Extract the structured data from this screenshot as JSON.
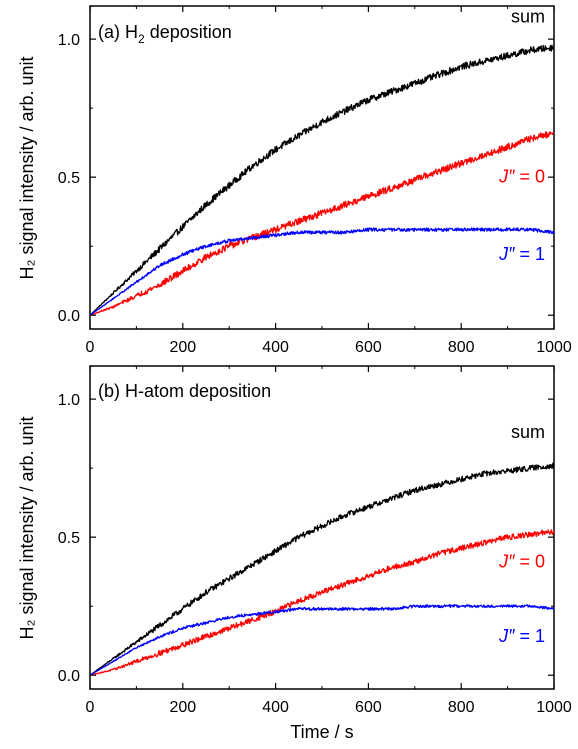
{
  "chart_data": [
    {
      "type": "line",
      "panel_label": "(a) H",
      "panel_label_sub": "2",
      "panel_label_rest": " deposition",
      "xlabel": "",
      "ylabel": "H₂ signal intensity / arb. unit",
      "xlim": [
        0,
        1000
      ],
      "ylim": [
        -0.05,
        1.12
      ],
      "xticks": [
        0,
        200,
        400,
        600,
        800,
        1000
      ],
      "yticks": [
        0.0,
        0.5,
        1.0
      ],
      "ytick_labels": [
        "0.0",
        "0.5",
        "1.0"
      ],
      "grid": false,
      "x": [
        0,
        50,
        100,
        150,
        200,
        250,
        300,
        350,
        400,
        450,
        500,
        550,
        600,
        650,
        700,
        750,
        800,
        850,
        900,
        950,
        1000
      ],
      "series": [
        {
          "label_text": "sum",
          "label_italic": "",
          "label_rest": "sum",
          "color": "#000000",
          "noise": 0.012,
          "values": [
            0.0,
            0.08,
            0.16,
            0.24,
            0.32,
            0.4,
            0.47,
            0.54,
            0.6,
            0.65,
            0.7,
            0.74,
            0.78,
            0.81,
            0.84,
            0.87,
            0.9,
            0.92,
            0.94,
            0.96,
            0.97
          ]
        },
        {
          "label_text": "J″ = 0",
          "label_italic": "J″",
          "label_rest": " = 0",
          "color": "#ff0000",
          "noise": 0.012,
          "values": [
            0.0,
            0.03,
            0.07,
            0.11,
            0.16,
            0.21,
            0.25,
            0.28,
            0.31,
            0.34,
            0.37,
            0.4,
            0.43,
            0.46,
            0.49,
            0.52,
            0.55,
            0.58,
            0.61,
            0.64,
            0.66
          ]
        },
        {
          "label_text": "J″ = 1",
          "label_italic": "J″",
          "label_rest": " = 1",
          "color": "#0000ff",
          "noise": 0.006,
          "values": [
            0.0,
            0.06,
            0.12,
            0.18,
            0.22,
            0.25,
            0.27,
            0.28,
            0.29,
            0.3,
            0.3,
            0.3,
            0.31,
            0.31,
            0.31,
            0.31,
            0.31,
            0.31,
            0.31,
            0.31,
            0.3
          ]
        }
      ]
    },
    {
      "type": "line",
      "panel_label": "(b) H-atom deposition",
      "panel_label_sub": "",
      "panel_label_rest": "",
      "xlabel": "Time / s",
      "ylabel": "H₂ signal intensity / arb. unit",
      "xlim": [
        0,
        1000
      ],
      "ylim": [
        -0.05,
        1.12
      ],
      "xticks": [
        0,
        200,
        400,
        600,
        800,
        1000
      ],
      "yticks": [
        0.0,
        0.5,
        1.0
      ],
      "ytick_labels": [
        "0.0",
        "0.5",
        "1.0"
      ],
      "grid": false,
      "x": [
        0,
        50,
        100,
        150,
        200,
        250,
        300,
        350,
        400,
        450,
        500,
        550,
        600,
        650,
        700,
        750,
        800,
        850,
        900,
        950,
        1000
      ],
      "series": [
        {
          "label_text": "sum",
          "label_italic": "",
          "label_rest": "sum",
          "color": "#000000",
          "noise": 0.01,
          "values": [
            0.0,
            0.06,
            0.12,
            0.18,
            0.24,
            0.3,
            0.35,
            0.4,
            0.45,
            0.5,
            0.54,
            0.58,
            0.61,
            0.64,
            0.67,
            0.69,
            0.71,
            0.73,
            0.74,
            0.75,
            0.76
          ]
        },
        {
          "label_text": "J″ = 0",
          "label_italic": "J″",
          "label_rest": " = 0",
          "color": "#ff0000",
          "noise": 0.01,
          "values": [
            0.0,
            0.02,
            0.05,
            0.08,
            0.11,
            0.14,
            0.17,
            0.2,
            0.23,
            0.27,
            0.3,
            0.33,
            0.36,
            0.39,
            0.41,
            0.44,
            0.46,
            0.48,
            0.5,
            0.51,
            0.52
          ]
        },
        {
          "label_text": "J″ = 1",
          "label_italic": "J″",
          "label_rest": " = 1",
          "color": "#0000ff",
          "noise": 0.005,
          "values": [
            0.0,
            0.05,
            0.1,
            0.14,
            0.17,
            0.19,
            0.21,
            0.22,
            0.23,
            0.24,
            0.24,
            0.24,
            0.24,
            0.24,
            0.25,
            0.25,
            0.25,
            0.25,
            0.25,
            0.25,
            0.24
          ]
        }
      ]
    }
  ]
}
